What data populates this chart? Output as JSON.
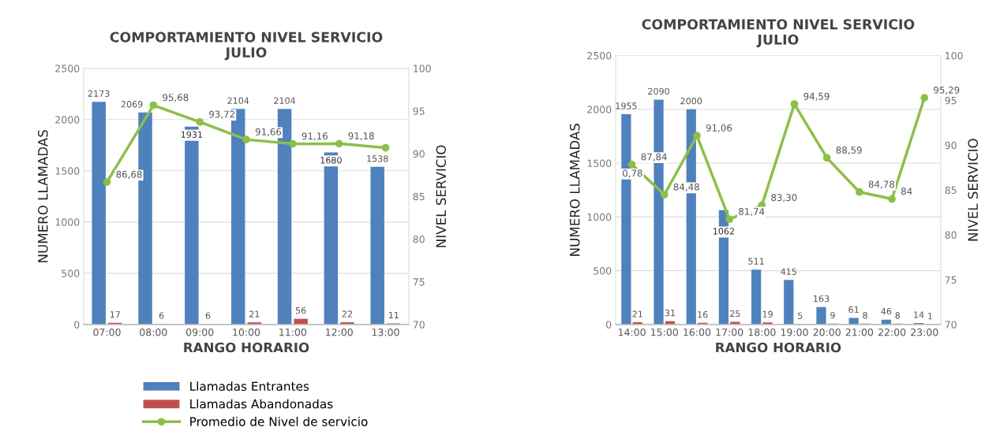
{
  "chart_data": [
    {
      "type": "bar",
      "title": "COMPORTAMIENTO NIVEL SERVICIO\nJULIO",
      "xlabel": "RANGO HORARIO",
      "ylabel": "NUMERO LLAMADAS",
      "y2label": "NIVEL SERVICIO",
      "categories": [
        "07:00",
        "08:00",
        "09:00",
        "10:00",
        "11:00",
        "12:00",
        "13:00"
      ],
      "series": [
        {
          "name": "Llamadas Entrantes",
          "color": "#4f81bd",
          "values": [
            2173,
            2069,
            1931,
            2104,
            2104,
            1680,
            1538
          ]
        },
        {
          "name": "Llamadas Abandonadas",
          "color": "#c0504d",
          "values": [
            17,
            6,
            6,
            21,
            56,
            22,
            11
          ]
        },
        {
          "name": "Promedio de Nivel de servicio",
          "type": "line",
          "axis": "y2",
          "color": "#8cbf48",
          "marker": "circle",
          "values": [
            86.68,
            95.68,
            93.72,
            91.66,
            91.16,
            91.18,
            90.7
          ],
          "value_labels": [
            "86,68",
            "95,68",
            "93,72",
            "91,66",
            "91,16",
            "91,18",
            null
          ]
        }
      ],
      "ylim": [
        0,
        2500
      ],
      "yticks": [
        0,
        500,
        1000,
        1500,
        2000,
        2500
      ],
      "y2lim": [
        70,
        100
      ],
      "y2ticks": [
        70,
        75,
        80,
        85,
        90,
        95,
        100
      ],
      "grid": "y",
      "legend": "bottom",
      "data_labels": true
    },
    {
      "type": "bar",
      "title": "COMPORTAMIENTO NIVEL SERVICIO\nJULIO",
      "xlabel": "RANGO HORARIO",
      "ylabel": "NUMERO LLAMADAS",
      "y2label": "NIVEL SERVICIO",
      "categories": [
        "14:00",
        "15:00",
        "16:00",
        "17:00",
        "18:00",
        "19:00",
        "20:00",
        "21:00",
        "22:00",
        "23:00"
      ],
      "series": [
        {
          "color": "#4f81bd",
          "values": [
            1955,
            2090,
            2000,
            1062,
            511,
            415,
            163,
            61,
            46,
            14
          ]
        },
        {
          "color": "#c0504d",
          "values": [
            21,
            31,
            16,
            25,
            19,
            5,
            9,
            8,
            8,
            1
          ]
        },
        {
          "type": "line",
          "axis": "y2",
          "color": "#8cbf48",
          "marker": "circle",
          "values": [
            87.84,
            84.48,
            91.06,
            81.74,
            83.3,
            94.59,
            88.59,
            84.78,
            84,
            95.29
          ],
          "value_labels": [
            "87,84",
            "84,48",
            "91,06",
            "81,74",
            "83,30",
            "94,59",
            "88,59",
            "84,78",
            "84",
            "95,29"
          ]
        }
      ],
      "annotations": [
        "0,78"
      ],
      "ylim": [
        0,
        2500
      ],
      "yticks": [
        0,
        500,
        1000,
        1500,
        2000,
        2500
      ],
      "y2lim": [
        70,
        100
      ],
      "y2ticks": [
        70,
        75,
        80,
        85,
        90,
        95,
        100
      ],
      "grid": "y",
      "legend": false,
      "data_labels": true
    }
  ]
}
